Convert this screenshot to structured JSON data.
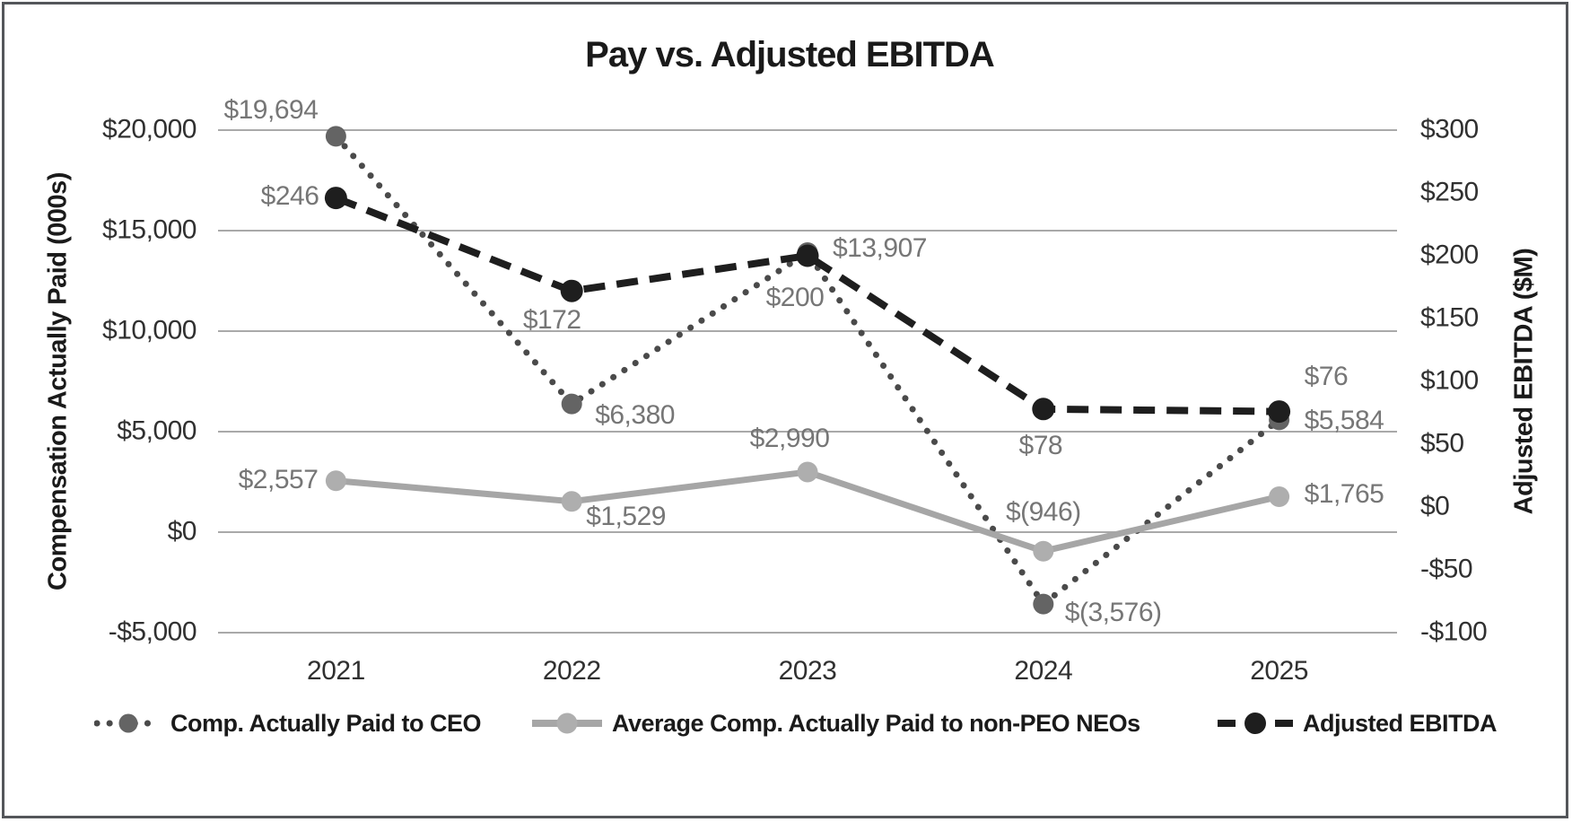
{
  "title": "Pay vs. Adjusted EBITDA",
  "axes": {
    "left": {
      "title": "Compensation Actually Paid (000s)",
      "ticks": [
        "$20,000",
        "$15,000",
        "$10,000",
        "$5,000",
        "$0",
        "-$5,000"
      ]
    },
    "right": {
      "title": "Adjusted EBITDA ($M)",
      "ticks": [
        "$300",
        "$250",
        "$200",
        "$150",
        "$100",
        "$50",
        "$0",
        "-$50",
        "-$100"
      ]
    }
  },
  "chart_data": {
    "type": "line",
    "categories": [
      "2021",
      "2022",
      "2023",
      "2024",
      "2025"
    ],
    "series": [
      {
        "name": "Comp. Actually Paid to CEO",
        "axis": "left",
        "line": "dotted",
        "color": "#4a4a4a",
        "marker_color": "#646464",
        "values": [
          19694,
          6380,
          13907,
          -3576,
          5584
        ],
        "labels": [
          "$19,694",
          "$6,380",
          "$13,907",
          "$(3,576)",
          "$5,584"
        ]
      },
      {
        "name": "Average Comp. Actually Paid to non-PEO NEOs",
        "axis": "left",
        "line": "solid",
        "color": "#a6a6a6",
        "marker_color": "#aeaeae",
        "values": [
          2557,
          1529,
          2990,
          -946,
          1765
        ],
        "labels": [
          "$2,557",
          "$1,529",
          "$2,990",
          "$(946)",
          "$1,765"
        ]
      },
      {
        "name": "Adjusted EBITDA",
        "axis": "right",
        "line": "dashed",
        "color": "#1e1e1e",
        "marker_color": "#1e1e1e",
        "values": [
          246,
          172,
          200,
          78,
          76
        ],
        "labels": [
          "$246",
          "$172",
          "$200",
          "$78",
          "$76"
        ]
      }
    ],
    "ylim_left": [
      -5000,
      20000
    ],
    "ylim_right": [
      -100,
      300
    ],
    "grid": true,
    "legend_position": "bottom",
    "title": "Pay vs. Adjusted EBITDA",
    "xlabel": "",
    "ylabel_left": "Compensation Actually Paid (000s)",
    "ylabel_right": "Adjusted EBITDA ($M)"
  },
  "colors": {
    "gridline": "#a9a9a9",
    "data_label": "#767676",
    "tick_label": "#303030",
    "frame_border": "#54565a"
  }
}
